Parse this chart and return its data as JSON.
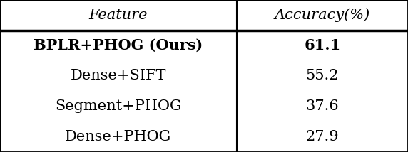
{
  "headers": [
    "Feature",
    "Accuracy(%)"
  ],
  "rows": [
    [
      "BPLR+PHOG (Ours)",
      "61.1"
    ],
    [
      "Dense+SIFT",
      "55.2"
    ],
    [
      "Segment+PHOG",
      "37.6"
    ],
    [
      "Dense+PHOG",
      "27.9"
    ]
  ],
  "bold_row": 0,
  "col_split": 0.58,
  "background_color": "#ffffff",
  "line_color": "#000000",
  "header_fontsize": 15,
  "row_fontsize": 15,
  "fig_width": 5.72,
  "fig_height": 2.14
}
